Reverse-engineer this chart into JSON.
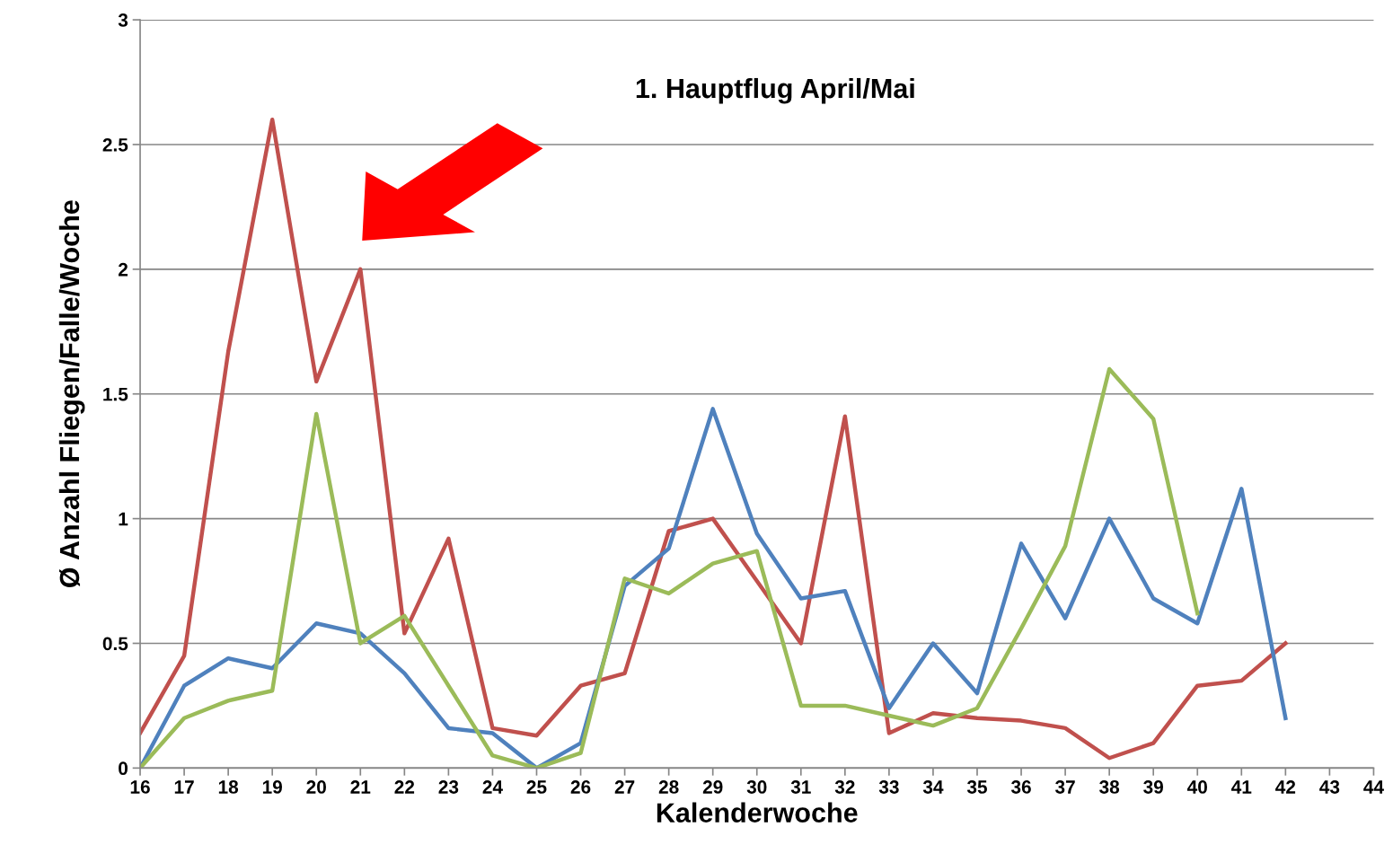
{
  "chart_data": {
    "type": "line",
    "xlabel": "Kalenderwoche",
    "ylabel": "Ø Anzahl Fliegen/Falle/Woche",
    "annotations": [
      "1. Hauptflug April/Mai"
    ],
    "categories": [
      "16",
      "17",
      "18",
      "19",
      "20",
      "21",
      "22",
      "23",
      "24",
      "25",
      "26",
      "27",
      "28",
      "29",
      "30",
      "31",
      "32",
      "33",
      "34",
      "35",
      "36",
      "37",
      "38",
      "39",
      "40",
      "41",
      "42",
      "43",
      "44"
    ],
    "series": [
      {
        "color": "#c0504d",
        "values": [
          0.14,
          0.45,
          1.67,
          2.6,
          1.55,
          2.0,
          0.54,
          0.92,
          0.16,
          0.13,
          0.33,
          0.38,
          0.95,
          1.0,
          0.75,
          0.5,
          1.41,
          0.14,
          0.22,
          0.2,
          0.19,
          0.16,
          0.04,
          0.1,
          0.33,
          0.35,
          0.5,
          null,
          null
        ]
      },
      {
        "color": "#4f81bd",
        "values": [
          0,
          0.33,
          0.44,
          0.4,
          0.58,
          0.54,
          0.38,
          0.16,
          0.14,
          0,
          0.1,
          0.73,
          0.88,
          1.44,
          0.94,
          0.68,
          0.71,
          0.24,
          0.5,
          0.3,
          0.9,
          0.6,
          1.0,
          0.68,
          0.58,
          1.12,
          0.2,
          null,
          null
        ]
      },
      {
        "color": "#9bbb59",
        "values": [
          0,
          0.2,
          0.27,
          0.31,
          1.42,
          0.5,
          0.61,
          0.33,
          0.05,
          0,
          0.06,
          0.76,
          0.7,
          0.82,
          0.87,
          0.25,
          0.25,
          0.21,
          0.17,
          0.24,
          0.56,
          0.89,
          1.6,
          1.4,
          0.62,
          null,
          null,
          null,
          null
        ]
      }
    ],
    "ylim": [
      0,
      3
    ],
    "yticks": [
      0,
      0.5,
      1,
      1.5,
      2,
      2.5,
      3
    ],
    "grid": "y",
    "legend": false,
    "marker": "none",
    "line_style": "solid"
  }
}
